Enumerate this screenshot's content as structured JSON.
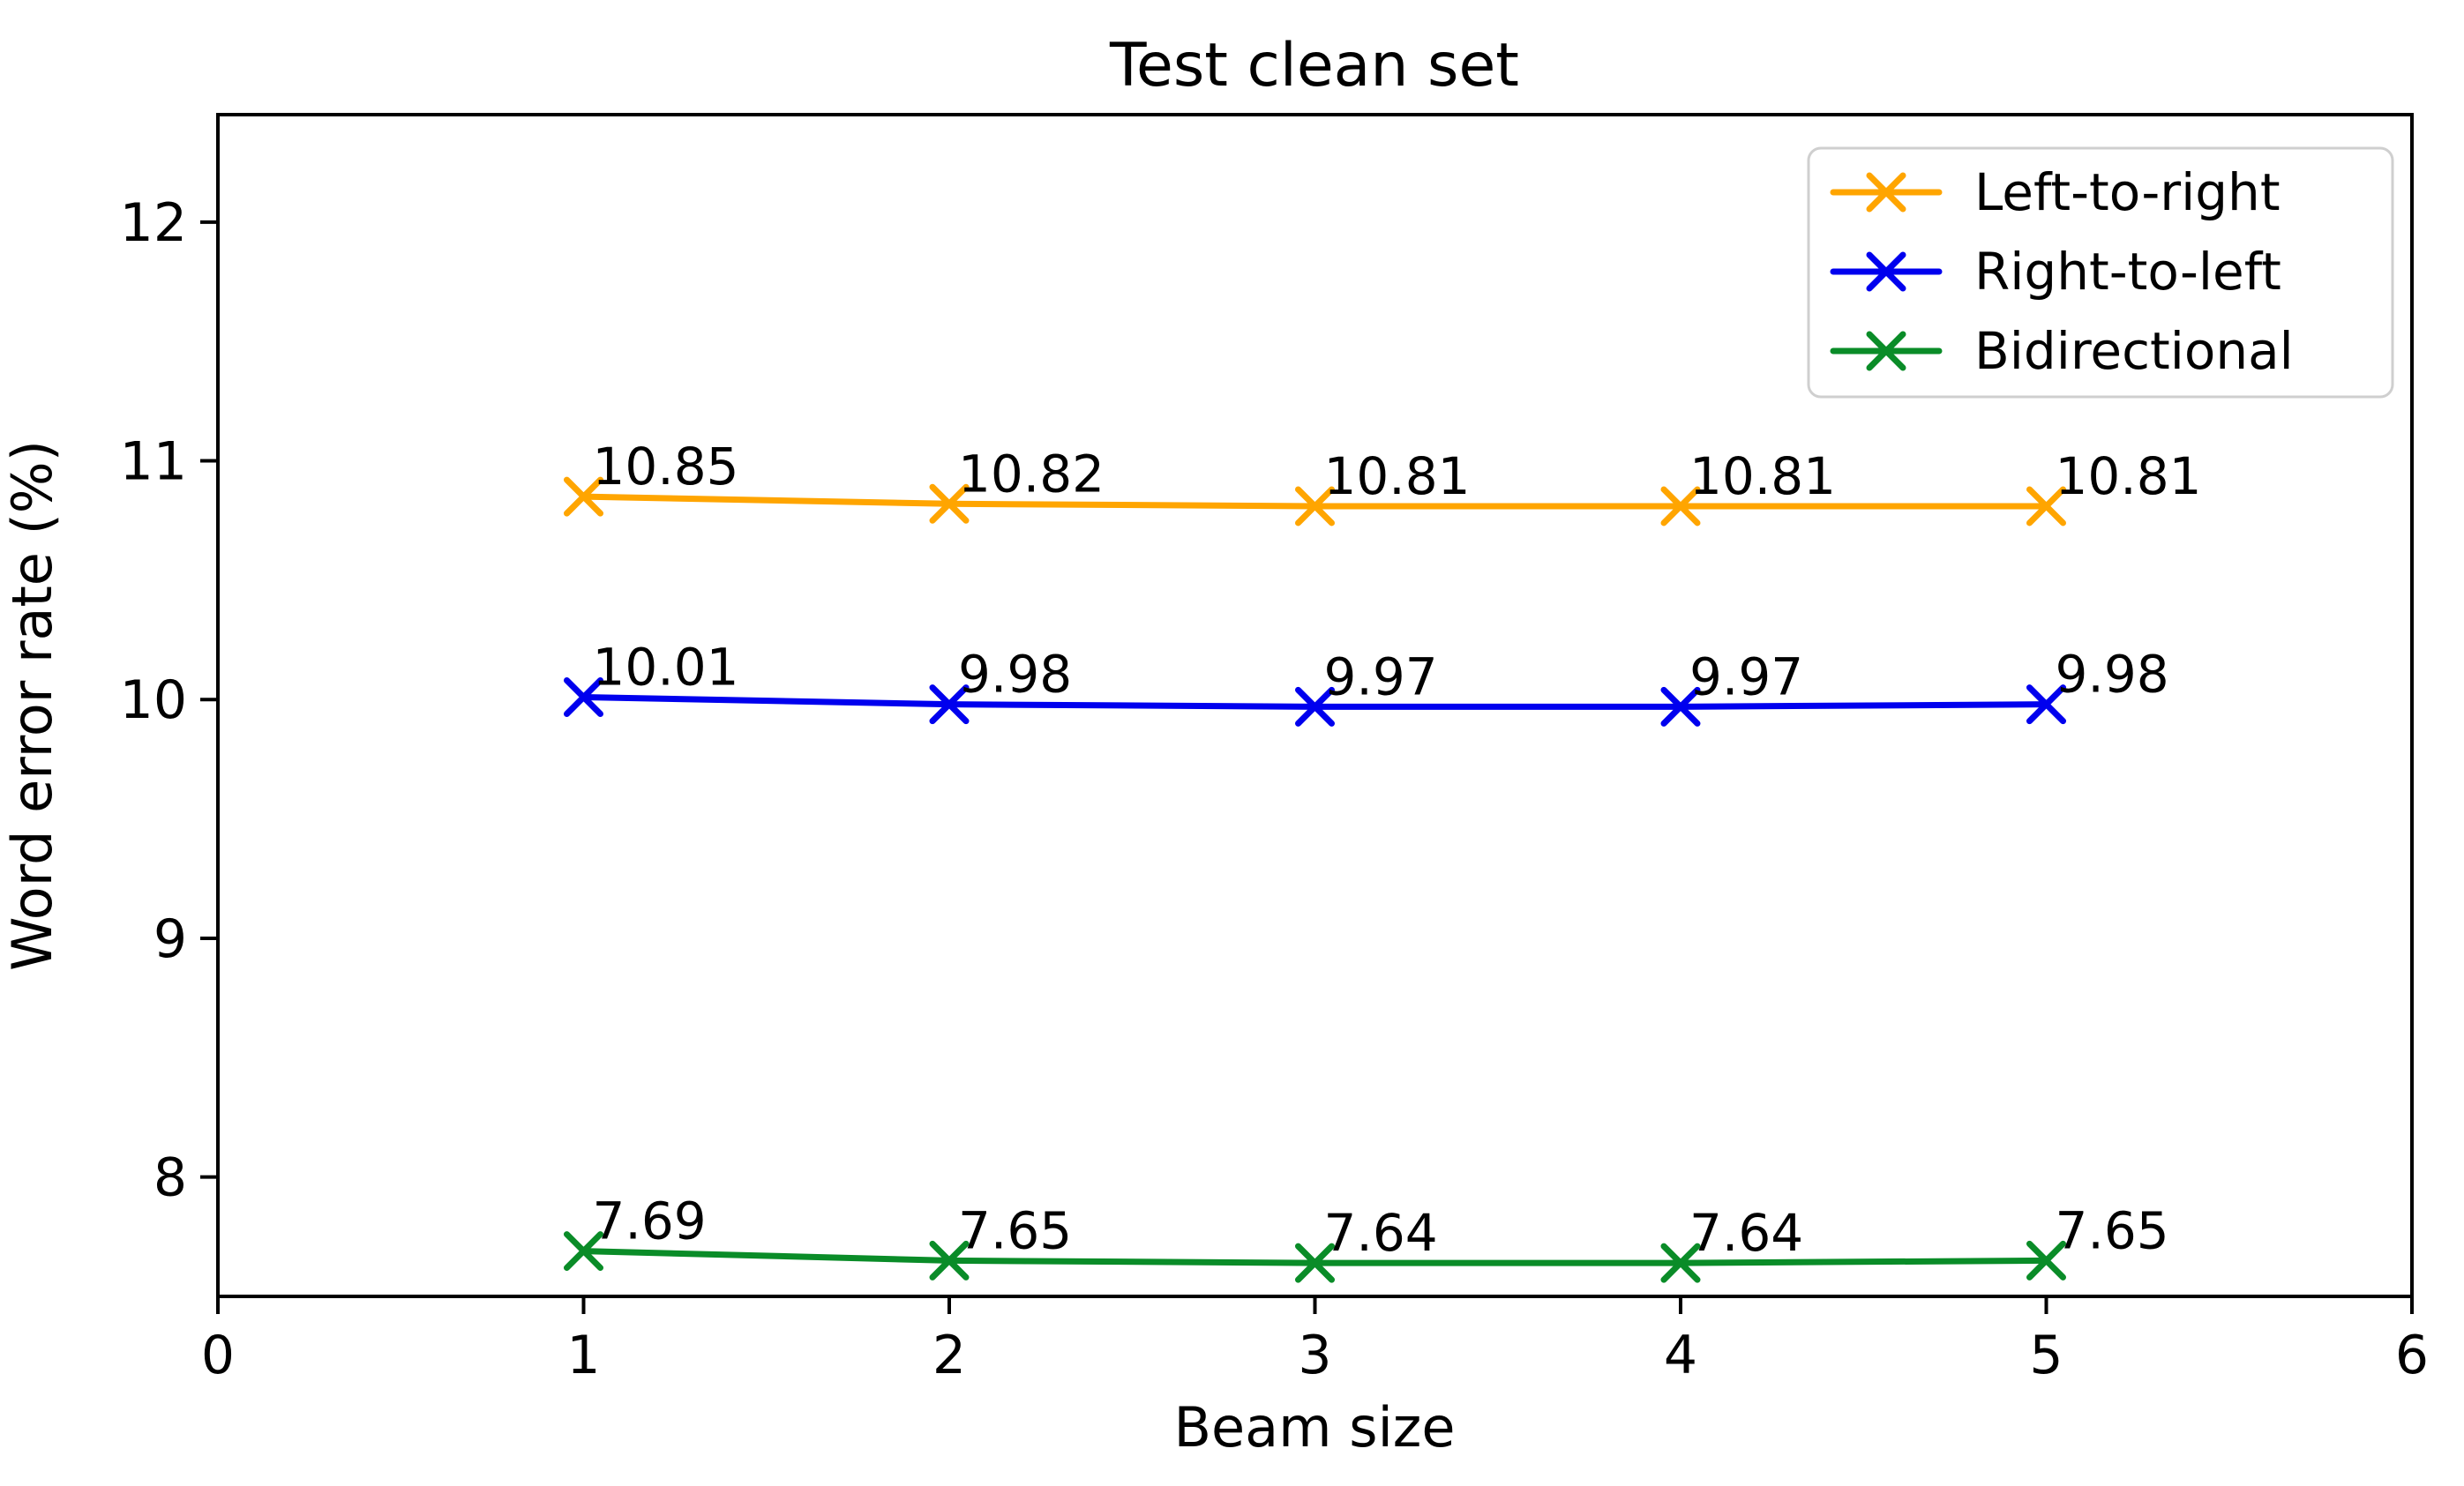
{
  "chart_data": {
    "type": "line",
    "title": "Test clean set",
    "xlabel": "Beam size",
    "ylabel": "Word error rate (%)",
    "x": [
      1,
      2,
      3,
      4,
      5
    ],
    "series": [
      {
        "name": "Left-to-right",
        "color": "#FFA500",
        "values": [
          10.85,
          10.82,
          10.81,
          10.81,
          10.81
        ]
      },
      {
        "name": "Right-to-left",
        "color": "#0000EE",
        "values": [
          10.01,
          9.98,
          9.97,
          9.97,
          9.98
        ]
      },
      {
        "name": "Bidirectional",
        "color": "#0A8C28",
        "values": [
          7.69,
          7.65,
          7.64,
          7.64,
          7.65
        ]
      }
    ],
    "point_labels": [
      [
        "10.85",
        "10.82",
        "10.81",
        "10.81",
        "10.81"
      ],
      [
        "10.01",
        "9.98",
        "9.97",
        "9.97",
        "9.98"
      ],
      [
        "7.69",
        "7.65",
        "7.64",
        "7.64",
        "7.65"
      ]
    ],
    "xlim": [
      0,
      6
    ],
    "ylim": [
      7.5,
      12.45
    ],
    "xticks": [
      "0",
      "1",
      "2",
      "3",
      "4",
      "5",
      "6"
    ],
    "yticks": [
      "8",
      "9",
      "10",
      "11",
      "12"
    ],
    "marker": "x",
    "grid": false,
    "legend_position": "upper right",
    "legend_border_color": "#cfcfcf",
    "spine_color": "#000000",
    "background_color": "#ffffff",
    "label_color": "#000000"
  }
}
